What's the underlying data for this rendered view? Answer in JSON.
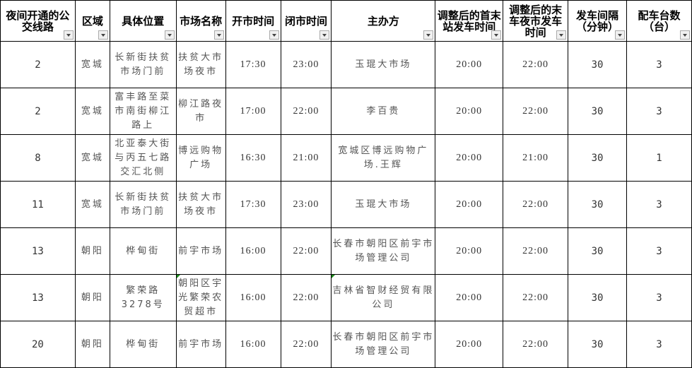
{
  "headers": [
    "夜间开通的公交线路",
    "区域",
    "具体位置",
    "市场名称",
    "开市时间",
    "闭市时间",
    "主办方",
    "调整后的首末站发车时间",
    "调整后的末车夜市发车时间",
    "发车间隔（分钟）",
    "配车台数（台）"
  ],
  "rows": [
    [
      "2",
      "宽城",
      "长新街扶贫市场门前",
      "扶贫大市场夜市",
      "17:30",
      "23:00",
      "玉琨大市场",
      "20:00",
      "22:00",
      "30",
      "3"
    ],
    [
      "2",
      "宽城",
      "富丰路至菜市南街柳江路上",
      "柳江路夜市",
      "17:00",
      "22:00",
      "李百贵",
      "20:00",
      "22:00",
      "30",
      "3"
    ],
    [
      "8",
      "宽城",
      "北亚泰大街与丙五七路交汇北侧",
      "博远购物广场",
      "16:30",
      "21:00",
      "宽城区博远购物广场.王辉",
      "20:00",
      "21:00",
      "30",
      "1"
    ],
    [
      "11",
      "宽城",
      "长新街扶贫市场门前",
      "扶贫大市场夜市",
      "17:30",
      "23:00",
      "玉琨大市场",
      "20:00",
      "22:00",
      "30",
      "3"
    ],
    [
      "13",
      "朝阳",
      "桦甸街",
      "前宇市场",
      "16:00",
      "22:00",
      "长春市朝阳区前宇市场管理公司",
      "20:00",
      "22:00",
      "30",
      "3"
    ],
    [
      "13",
      "朝阳",
      "繁荣路3278号",
      "朝阳区宇光繁荣农贸超市",
      "16:00",
      "22:00",
      "吉林省智财经贸有限公司",
      "20:00",
      "22:00",
      "30",
      "3"
    ],
    [
      "20",
      "朝阳",
      "桦甸街",
      "前宇市场",
      "16:00",
      "22:00",
      "长春市朝阳区前宇市场管理公司",
      "20:00",
      "22:00",
      "30",
      "3"
    ]
  ],
  "icons": {
    "filter": "dropdown-arrow-icon",
    "comment_marker": "green-triangle-indicator"
  },
  "colors": {
    "comment_marker": "#1a8a1a"
  }
}
